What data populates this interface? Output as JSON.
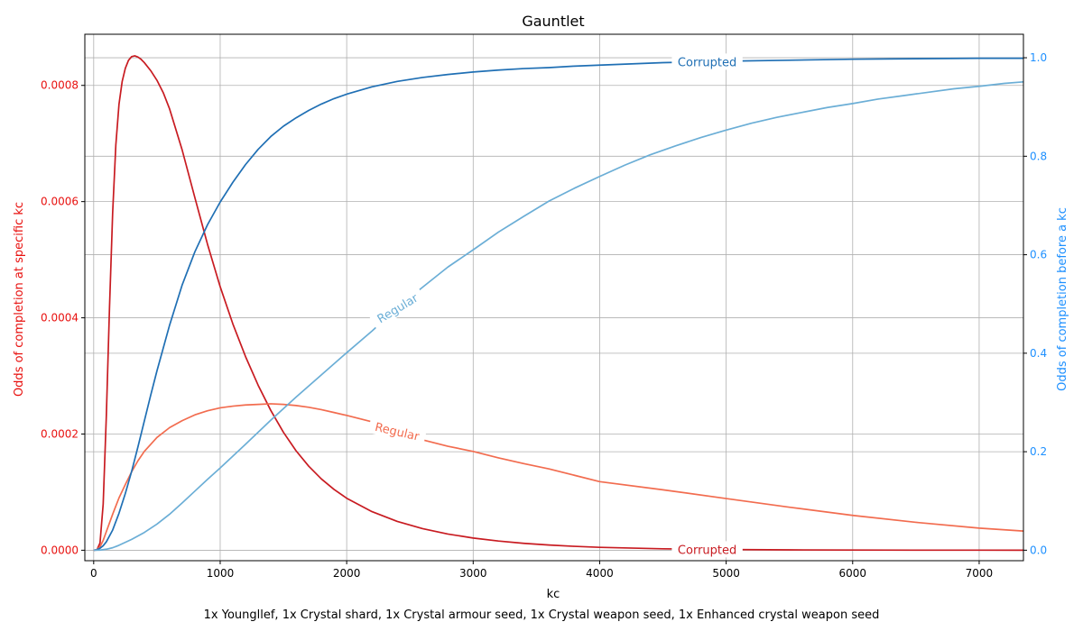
{
  "chart_data": {
    "type": "line",
    "title": "Gauntlet",
    "xlabel": "kc",
    "caption": "1x Youngllef, 1x Crystal shard, 1x Crystal armour seed, 1x Crystal weapon seed, 1x Enhanced crystal weapon seed",
    "grid": true,
    "xlim": [
      -70,
      7350
    ],
    "x_ticks": [
      0,
      1000,
      2000,
      3000,
      4000,
      5000,
      6000,
      7000
    ],
    "y_left": {
      "label": "Odds of completion at specific kc",
      "color": "#e8110f",
      "lim": [
        -1.8e-05,
        0.000888
      ],
      "ticks": [
        0,
        0.0002,
        0.0004,
        0.0006,
        0.0008
      ],
      "tick_labels": [
        "0.0000",
        "0.0002",
        "0.0004",
        "0.0006",
        "0.0008"
      ]
    },
    "y_right": {
      "label": "Odds of completion before a kc",
      "color": "#1e90ff",
      "lim": [
        -0.0213,
        1.0477
      ],
      "ticks": [
        0,
        0.2,
        0.4,
        0.6,
        0.8,
        1.0
      ],
      "tick_labels": [
        "0.0",
        "0.2",
        "0.4",
        "0.6",
        "0.8",
        "1.0"
      ]
    },
    "series": [
      {
        "name": "Corrupted",
        "axis": "left",
        "color": "#c81b21",
        "label_at_x": 4850,
        "label_rotation": 0,
        "x": [
          0,
          25,
          50,
          75,
          100,
          125,
          150,
          175,
          200,
          225,
          250,
          275,
          300,
          325,
          350,
          375,
          400,
          450,
          500,
          550,
          600,
          700,
          800,
          900,
          1000,
          1100,
          1200,
          1300,
          1400,
          1500,
          1600,
          1700,
          1800,
          1900,
          2000,
          2200,
          2400,
          2600,
          2800,
          3000,
          3200,
          3400,
          3600,
          3800,
          4000,
          4500,
          5000,
          5500,
          6000,
          6500,
          7000,
          7350
        ],
        "values": [
          0,
          4e-07,
          1.25e-05,
          7.92e-05,
          0.0002316,
          0.0004173,
          0.0005813,
          0.0006973,
          0.0007673,
          0.0008066,
          0.0008294,
          0.0008431,
          0.0008495,
          0.0008508,
          0.0008488,
          0.0008448,
          0.0008392,
          0.0008256,
          0.0008088,
          0.0007874,
          0.0007595,
          0.0006884,
          0.0006067,
          0.0005264,
          0.0004535,
          0.0003896,
          0.0003334,
          0.000284,
          0.0002406,
          0.000203,
          0.0001711,
          0.0001446,
          0.0001227,
          0.0001047,
          8.95e-05,
          6.64e-05,
          4.96e-05,
          3.71e-05,
          2.79e-05,
          2.1e-05,
          1.58e-05,
          1.19e-05,
          8.9e-06,
          6.7e-06,
          5e-06,
          2.5e-06,
          1.2e-06,
          6e-07,
          3e-07,
          1e-07,
          1e-07,
          0
        ]
      },
      {
        "name": "Regular",
        "axis": "left",
        "color": "#f26c4f",
        "label_at_x": 2400,
        "label_rotation": 13,
        "x": [
          0,
          25,
          50,
          75,
          100,
          150,
          200,
          250,
          300,
          350,
          400,
          500,
          600,
          700,
          800,
          900,
          1000,
          1100,
          1200,
          1300,
          1400,
          1500,
          1600,
          1700,
          1800,
          1900,
          2000,
          2200,
          2400,
          2600,
          2800,
          3000,
          3200,
          3400,
          3600,
          3800,
          4000,
          4500,
          5000,
          5500,
          6000,
          6500,
          7000,
          7350
        ],
        "values": [
          0,
          1e-06,
          6e-06,
          1.7e-05,
          3.2e-05,
          6.2e-05,
          9e-05,
          0.000113,
          0.000135,
          0.000154,
          0.00017,
          0.000194,
          0.000211,
          0.000223,
          0.000233,
          0.00024,
          0.000245,
          0.000248,
          0.00025,
          0.000251,
          0.000252,
          0.000251,
          0.000249,
          0.000246,
          0.000242,
          0.000237,
          0.000232,
          0.000221,
          0.000205,
          0.00019,
          0.000179,
          0.00017,
          0.000159,
          0.000149,
          0.00014,
          0.000129,
          0.000118,
          0.000104,
          8.9e-05,
          7.4e-05,
          6e-05,
          4.8e-05,
          3.8e-05,
          3.3e-05
        ]
      },
      {
        "name": "Corrupted",
        "axis": "right",
        "color": "#1f6fb4",
        "label_at_x": 4850,
        "label_rotation": 0,
        "x": [
          0,
          25,
          50,
          75,
          100,
          150,
          200,
          250,
          300,
          350,
          400,
          450,
          500,
          600,
          700,
          800,
          900,
          1000,
          1100,
          1200,
          1300,
          1400,
          1500,
          1600,
          1700,
          1800,
          1900,
          2000,
          2200,
          2400,
          2600,
          2800,
          3000,
          3200,
          3400,
          3600,
          3800,
          4000,
          4500,
          5000,
          5500,
          6000,
          6500,
          7000,
          7350
        ],
        "values": [
          0,
          0.001,
          0.004,
          0.009,
          0.017,
          0.041,
          0.075,
          0.115,
          0.16,
          0.21,
          0.262,
          0.314,
          0.364,
          0.457,
          0.539,
          0.606,
          0.661,
          0.707,
          0.747,
          0.783,
          0.814,
          0.84,
          0.861,
          0.878,
          0.893,
          0.906,
          0.917,
          0.926,
          0.941,
          0.952,
          0.96,
          0.966,
          0.971,
          0.975,
          0.978,
          0.98,
          0.983,
          0.985,
          0.99,
          0.993,
          0.995,
          0.997,
          0.998,
          0.999,
          0.999
        ]
      },
      {
        "name": "Regular",
        "axis": "right",
        "color": "#6baed6",
        "label_at_x": 2400,
        "label_rotation": -31,
        "x": [
          0,
          50,
          100,
          150,
          200,
          300,
          400,
          500,
          600,
          700,
          800,
          900,
          1000,
          1200,
          1400,
          1600,
          1800,
          2000,
          2200,
          2400,
          2600,
          2800,
          3000,
          3200,
          3400,
          3600,
          3800,
          4000,
          4200,
          4400,
          4600,
          4800,
          5000,
          5200,
          5400,
          5600,
          5800,
          6000,
          6200,
          6400,
          6600,
          6800,
          7000,
          7200,
          7350
        ],
        "values": [
          0,
          0.0002,
          0.002,
          0.005,
          0.01,
          0.022,
          0.036,
          0.053,
          0.073,
          0.096,
          0.12,
          0.144,
          0.167,
          0.215,
          0.264,
          0.311,
          0.356,
          0.401,
          0.445,
          0.492,
          0.534,
          0.575,
          0.61,
          0.646,
          0.678,
          0.709,
          0.735,
          0.759,
          0.782,
          0.803,
          0.821,
          0.838,
          0.853,
          0.867,
          0.879,
          0.889,
          0.899,
          0.907,
          0.916,
          0.923,
          0.93,
          0.937,
          0.942,
          0.948,
          0.951
        ]
      }
    ]
  }
}
